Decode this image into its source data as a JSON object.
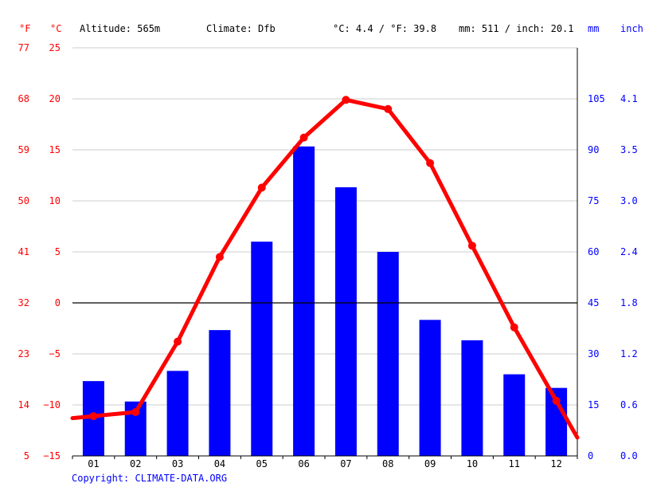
{
  "header": {
    "unit_f": "°F",
    "unit_c": "°C",
    "altitude": "Altitude: 565m",
    "climate": "Climate: Dfb",
    "temp_avg": "°C: 4.4 / °F: 39.8",
    "precip_total": "mm: 511 / inch: 20.1",
    "unit_mm": "mm",
    "unit_inch": "inch"
  },
  "copyright": "Copyright: CLIMATE-DATA.ORG",
  "colors": {
    "temperature": "#ff0000",
    "precipitation": "#0000ff",
    "grid": "#cccccc",
    "zero_line": "#000000"
  },
  "chart_data": {
    "type": "bar",
    "categories": [
      "01",
      "02",
      "03",
      "04",
      "05",
      "06",
      "07",
      "08",
      "09",
      "10",
      "11",
      "12"
    ],
    "series": [
      {
        "type": "bar",
        "axis": "right",
        "values": [
          22,
          16,
          25,
          37,
          63,
          91,
          79,
          60,
          40,
          34,
          24,
          20
        ]
      },
      {
        "type": "line",
        "axis": "left",
        "values": [
          -11.1,
          -10.7,
          -3.8,
          4.5,
          11.3,
          16.2,
          19.9,
          19.0,
          13.7,
          5.6,
          -2.4,
          -9.6
        ]
      }
    ],
    "left_axis": {
      "range": [
        -15,
        25
      ],
      "ticks_c": [
        "25",
        "20",
        "15",
        "10",
        "5",
        "0",
        "−5",
        "−10",
        "−15"
      ],
      "ticks_f": [
        "77",
        "68",
        "59",
        "50",
        "41",
        "32",
        "23",
        "14",
        "5"
      ]
    },
    "right_axis": {
      "range": [
        0,
        120
      ],
      "ticks_mm": [
        "105",
        "90",
        "75",
        "60",
        "45",
        "30",
        "15",
        "0"
      ],
      "ticks_inch": [
        "4.1",
        "3.5",
        "3.0",
        "2.4",
        "1.8",
        "1.2",
        "0.6",
        "0.0"
      ]
    },
    "grid": true
  }
}
